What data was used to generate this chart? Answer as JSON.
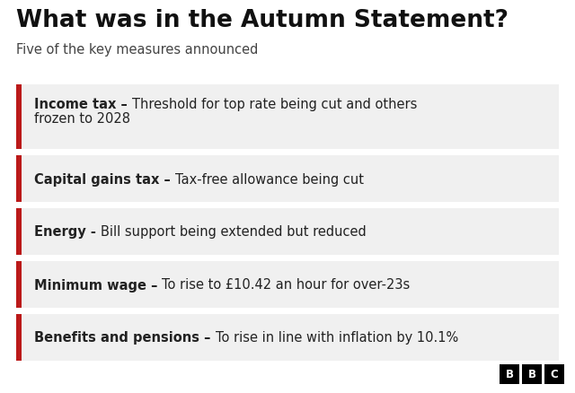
{
  "title": "What was in the Autumn Statement?",
  "subtitle": "Five of the key measures announced",
  "background_color": "#ffffff",
  "card_background": "#f0f0f0",
  "accent_color": "#bb1919",
  "title_color": "#111111",
  "subtitle_color": "#444444",
  "text_color": "#222222",
  "items": [
    {
      "bold": "Income tax",
      "separator": " – ",
      "normal": "Threshold for top rate being cut and others\nfrozen to 2028",
      "two_line": true
    },
    {
      "bold": "Capital gains tax",
      "separator": " – ",
      "normal": "Tax-free allowance being cut",
      "two_line": false
    },
    {
      "bold": "Energy",
      "separator": " - ",
      "normal": "Bill support being extended but reduced",
      "two_line": false
    },
    {
      "bold": "Minimum wage",
      "separator": " – ",
      "normal": "To rise to £10.42 an hour for over-23s",
      "two_line": false
    },
    {
      "bold": "Benefits and pensions",
      "separator": " – ",
      "normal": "To rise in line with inflation by 10.1%",
      "two_line": false
    }
  ],
  "bbc_logo_color": "#000000",
  "bbc_text_color": "#ffffff"
}
